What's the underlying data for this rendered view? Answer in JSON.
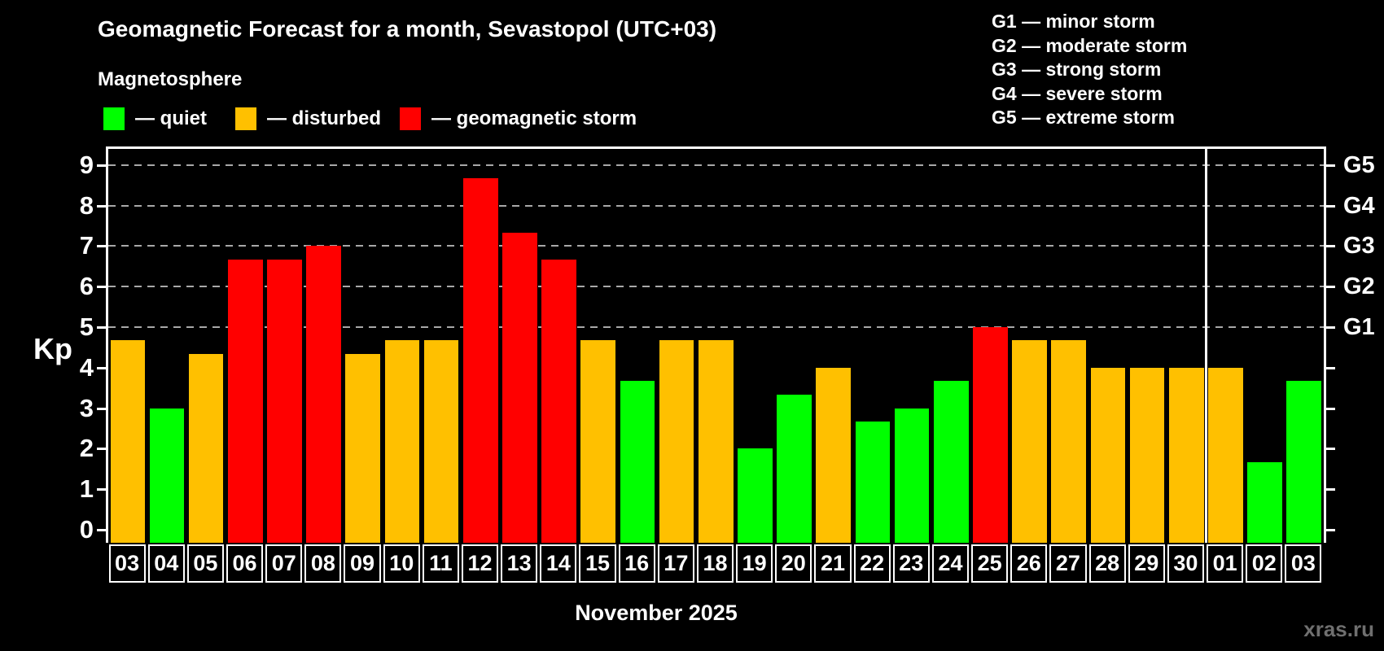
{
  "header": {
    "title": "Geomagnetic Forecast for a month, Sevastopol (UTC+03)",
    "subtitle": "Magnetosphere"
  },
  "legend": {
    "items": [
      {
        "key": "quiet",
        "label": "— quiet",
        "color": "#00ff00"
      },
      {
        "key": "disturbed",
        "label": "— disturbed",
        "color": "#ffc000"
      },
      {
        "key": "storm",
        "label": "— geomagnetic storm",
        "color": "#ff0000"
      }
    ]
  },
  "g_legend": {
    "lines": [
      "G1 — minor storm",
      "G2 — moderate storm",
      "G3 — strong storm",
      "G4 — severe storm",
      "G5 — extreme storm"
    ]
  },
  "axes": {
    "y_label": "Kp",
    "y_ticks": [
      0,
      1,
      2,
      3,
      4,
      5,
      6,
      7,
      8,
      9
    ],
    "g_levels": [
      {
        "label": "G1",
        "kp": 5
      },
      {
        "label": "G2",
        "kp": 6
      },
      {
        "label": "G3",
        "kp": 7
      },
      {
        "label": "G4",
        "kp": 8
      },
      {
        "label": "G5",
        "kp": 9
      }
    ]
  },
  "footer": {
    "x_label": "November 2025",
    "watermark": "xras.ru"
  },
  "chart_data": {
    "type": "bar",
    "title": "Geomagnetic Forecast for a month, Sevastopol (UTC+03)",
    "xlabel": "November 2025",
    "ylabel": "Kp",
    "ylim": [
      0,
      9.5
    ],
    "categories": [
      "03",
      "04",
      "05",
      "06",
      "07",
      "08",
      "09",
      "10",
      "11",
      "12",
      "13",
      "14",
      "15",
      "16",
      "17",
      "18",
      "19",
      "20",
      "21",
      "22",
      "23",
      "24",
      "25",
      "26",
      "27",
      "28",
      "29",
      "30",
      "01",
      "02",
      "03"
    ],
    "values": [
      4.67,
      3,
      4.33,
      6.67,
      6.67,
      7,
      4.33,
      4.67,
      4.67,
      8.67,
      7.33,
      6.67,
      4.67,
      3.67,
      4.67,
      4.67,
      2,
      3.33,
      4,
      2.67,
      3,
      3.67,
      5,
      4.67,
      4.67,
      4,
      4,
      4,
      4,
      1.67,
      3.67
    ],
    "status": [
      "disturbed",
      "quiet",
      "disturbed",
      "storm",
      "storm",
      "storm",
      "disturbed",
      "disturbed",
      "disturbed",
      "storm",
      "storm",
      "storm",
      "disturbed",
      "quiet",
      "disturbed",
      "disturbed",
      "quiet",
      "quiet",
      "disturbed",
      "quiet",
      "quiet",
      "quiet",
      "storm",
      "disturbed",
      "disturbed",
      "disturbed",
      "disturbed",
      "disturbed",
      "disturbed",
      "quiet",
      "quiet"
    ],
    "colors": {
      "quiet": "#00ff00",
      "disturbed": "#ffc000",
      "storm": "#ff0000"
    },
    "gridlines_kp": [
      5,
      6,
      7,
      8,
      9
    ],
    "grid": "dashed horizontal lines at G storm levels only",
    "legend_position": "top-left",
    "month_separator_after_index": 27
  }
}
